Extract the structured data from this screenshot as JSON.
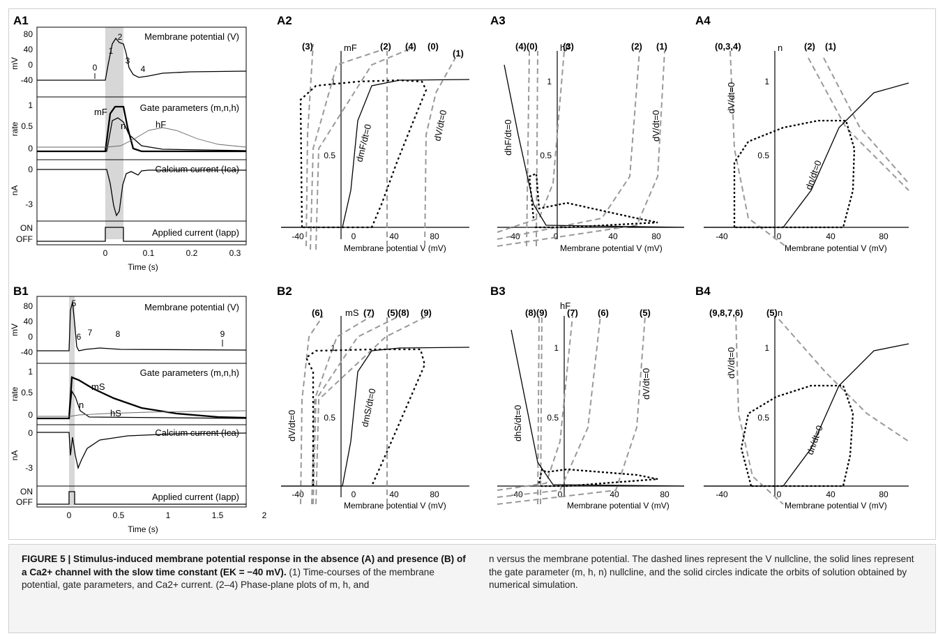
{
  "panels": {
    "A1": "A1",
    "A2": "A2",
    "A3": "A3",
    "A4": "A4",
    "B1": "B1",
    "B2": "B2",
    "B3": "B3",
    "B4": "B4"
  },
  "traces": {
    "membrane": "Membrane potential (V)",
    "gate": "Gate parameters (m,n,h)",
    "calcium": "Calcium current (Ica)",
    "applied": "Applied current (Iapp)"
  },
  "ylabels": {
    "mv": "mV",
    "rate": "rate",
    "na": "nA"
  },
  "ticks": {
    "mv_a": [
      "80",
      "40",
      "0",
      "-40"
    ],
    "mv_b": [
      "80",
      "40",
      "0",
      "-40"
    ],
    "rate": [
      "1",
      "0.5",
      "0"
    ],
    "na_a": [
      "0",
      "-3"
    ],
    "na_b": [
      "0",
      "-3"
    ],
    "onoff": [
      "ON",
      "OFF"
    ],
    "time_a": [
      "0",
      "0.1",
      "0.2",
      "0.3"
    ],
    "time_b": [
      "0",
      "0.5",
      "1",
      "1.5",
      "2"
    ],
    "phase_x": [
      "-40",
      "0",
      "40",
      "80"
    ],
    "phase_y": [
      "1",
      "0.5"
    ]
  },
  "time_label": "Time (s)",
  "phase_xlabel": "Membrane potential V (mV)",
  "markers_a": [
    "0",
    "1",
    "2",
    "3",
    "4"
  ],
  "markers_b": [
    "5",
    "6",
    "7",
    "8",
    "9"
  ],
  "curve_labels": {
    "mF": "mF",
    "n": "n",
    "hF": "hF",
    "mS": "mS",
    "hS": "hS"
  },
  "phase_ylabels": {
    "A2": "mF",
    "A3": "hF",
    "A4": "n",
    "B2": "mS",
    "B3": "hF",
    "B4": "n"
  },
  "nullclines": {
    "A2": [
      "(3)",
      "(2)",
      "(4)",
      "(0)",
      "(1)"
    ],
    "A3": [
      "(4)(0)",
      "(3)",
      "(2)",
      "(1)"
    ],
    "A4": [
      "(0,3,4)",
      "(2)",
      "(1)"
    ],
    "B2": [
      "(6)",
      "(7)",
      "(5)(8)",
      "(9)"
    ],
    "B3": [
      "(8)(9)",
      "(7)",
      "(6)",
      "(5)"
    ],
    "B4": [
      "(9,8,7,6)",
      "(5)"
    ]
  },
  "nullcline_text": {
    "dV": "dV/dt=0",
    "dmF": "dmF/dt=0",
    "dhF": "dhF/dt=0",
    "dn": "dn/dt=0",
    "dmS": "dmS/dt=0",
    "dhS": "dhS/dt=0"
  },
  "caption": {
    "left_bold": "FIGURE 5 | Stimulus-induced membrane potential response in the absence (A) and presence (B) of a Ca2+ channel with the slow time constant (EK = −40 mV).",
    "left_text": " (1) Time-courses of the membrane potential, gate parameters, and Ca2+ current. (2–4) Phase-plane plots of m, h, and",
    "right_text": "n versus the membrane potential. The dashed lines represent the V nullcline, the solid lines represent the gate parameter (m, h, n) nullcline, and the solid circles indicate the orbits of solution obtained by numerical simulation."
  }
}
